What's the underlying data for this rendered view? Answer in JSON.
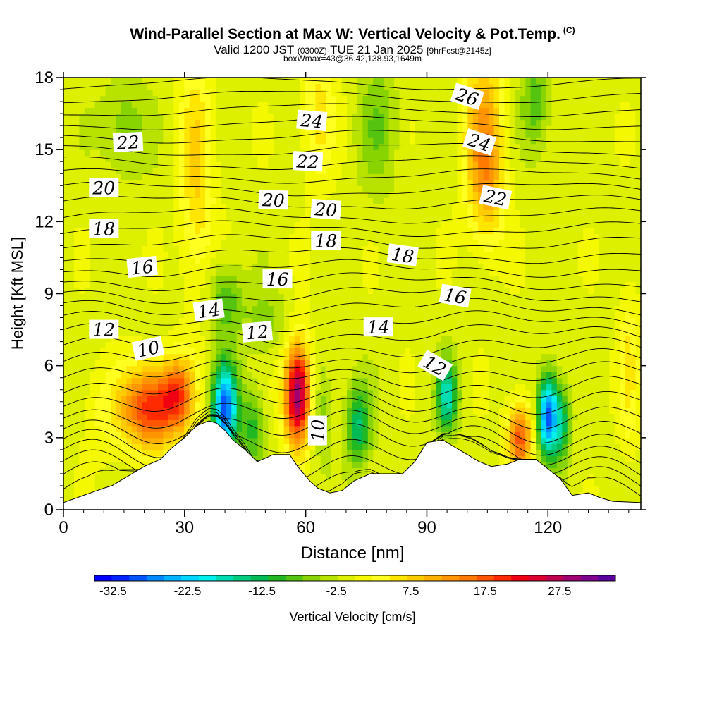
{
  "titles": {
    "main": "Wind-Parallel Section at Max W: Vertical Velocity & Pot.Temp.",
    "copyright": "(C)",
    "valid_prefix": "Valid 1200 JST",
    "valid_utc": "(0300Z)",
    "valid_date": "TUE 21 Jan 2025",
    "forecast": "[9hrFcst@2145z]",
    "boxinfo": "boxWmax=43@36.42,138.93,1649m"
  },
  "chart_data": {
    "type": "heatmap",
    "xlabel": "Distance [nm]",
    "ylabel": "Height [Kft MSL]",
    "xlim": [
      0,
      143
    ],
    "ylim": [
      0,
      18
    ],
    "x_ticks": [
      0,
      30,
      60,
      90,
      120
    ],
    "y_ticks": [
      0,
      3,
      6,
      9,
      12,
      15,
      18
    ],
    "colorbar": {
      "label": "Vertical Velocity [cm/s]",
      "tick_labels": [
        "-32.5",
        "-22.5",
        "-12.5",
        "-2.5",
        "7.5",
        "17.5",
        "27.5"
      ],
      "tick_values": [
        -32.5,
        -22.5,
        -12.5,
        -2.5,
        7.5,
        17.5,
        27.5
      ],
      "min": -35,
      "max": 35,
      "step": 2.5,
      "colors": [
        "#0000ff",
        "#0022ff",
        "#0055ff",
        "#0088ff",
        "#00b4ff",
        "#00d6ff",
        "#00f0ee",
        "#00ddb0",
        "#00cc80",
        "#00bb55",
        "#22b822",
        "#55c411",
        "#88d400",
        "#b8e300",
        "#dcf000",
        "#f4f800",
        "#ffff20",
        "#ffe600",
        "#ffcc00",
        "#ffb000",
        "#ff9500",
        "#ff7a00",
        "#ff5500",
        "#ff2a00",
        "#f00010",
        "#dc0030",
        "#c00050",
        "#a00070",
        "#800090",
        "#5a00a0"
      ]
    },
    "terrain": [
      [
        0,
        0.3
      ],
      [
        5,
        0.6
      ],
      [
        10,
        0.9
      ],
      [
        12,
        1.0
      ],
      [
        14,
        1.2
      ],
      [
        16,
        1.4
      ],
      [
        18,
        1.6
      ],
      [
        20,
        1.8
      ],
      [
        24,
        2.1
      ],
      [
        27,
        2.6
      ],
      [
        30,
        3.0
      ],
      [
        33,
        3.5
      ],
      [
        36,
        3.7
      ],
      [
        38,
        3.6
      ],
      [
        40,
        3.3
      ],
      [
        42,
        2.9
      ],
      [
        45,
        2.5
      ],
      [
        48,
        2.0
      ],
      [
        52,
        2.3
      ],
      [
        56,
        2.3
      ],
      [
        58,
        1.8
      ],
      [
        61,
        1.2
      ],
      [
        63,
        0.9
      ],
      [
        66,
        0.7
      ],
      [
        69,
        0.8
      ],
      [
        72,
        1.2
      ],
      [
        76,
        1.5
      ],
      [
        80,
        1.5
      ],
      [
        84,
        1.5
      ],
      [
        87,
        2.0
      ],
      [
        90,
        2.8
      ],
      [
        94,
        2.9
      ],
      [
        97,
        2.6
      ],
      [
        100,
        2.3
      ],
      [
        103,
        2.0
      ],
      [
        106,
        1.8
      ],
      [
        110,
        1.9
      ],
      [
        113,
        2.1
      ],
      [
        117,
        2.1
      ],
      [
        120,
        1.7
      ],
      [
        123,
        1.3
      ],
      [
        126,
        0.6
      ],
      [
        130,
        0.7
      ],
      [
        133,
        0.5
      ],
      [
        136,
        0.35
      ],
      [
        143,
        0.3
      ]
    ],
    "w_anomalies": [
      {
        "x": 22,
        "z": 4.3,
        "amp": 24,
        "sx": 5.5,
        "sz": 1.2
      },
      {
        "x": 28.5,
        "z": 5.0,
        "amp": 12,
        "sx": 2.5,
        "sz": 1.0
      },
      {
        "x": 40,
        "z": 4.2,
        "amp": -30,
        "sx": 2.2,
        "sz": 1.3
      },
      {
        "x": 58,
        "z": 4.8,
        "amp": 34,
        "sx": 2.3,
        "sz": 1.5
      },
      {
        "x": 47,
        "z": 3.4,
        "amp": -10,
        "sx": 2.0,
        "sz": 1.2
      },
      {
        "x": 73,
        "z": 3.5,
        "amp": -14,
        "sx": 2.2,
        "sz": 1.2
      },
      {
        "x": 95,
        "z": 4.8,
        "amp": -18,
        "sx": 1.8,
        "sz": 1.0
      },
      {
        "x": 113,
        "z": 3.0,
        "amp": 20,
        "sx": 2.2,
        "sz": 1.1
      },
      {
        "x": 120,
        "z": 3.9,
        "amp": -30,
        "sx": 1.8,
        "sz": 1.2
      },
      {
        "x": 123.5,
        "z": 3.6,
        "amp": -12,
        "sx": 1.5,
        "sz": 1.1
      },
      {
        "x": 64,
        "z": 4.2,
        "amp": -6,
        "sx": 2.0,
        "sz": 1.5
      },
      {
        "x": 33,
        "z": 14,
        "amp": 9,
        "sx": 3.0,
        "sz": 3.5
      },
      {
        "x": 40,
        "z": 8.8,
        "amp": -9,
        "sx": 3.0,
        "sz": 1.1
      },
      {
        "x": 104,
        "z": 16,
        "amp": 12,
        "sx": 3.5,
        "sz": 2.5
      },
      {
        "x": 105,
        "z": 13.2,
        "amp": 8,
        "sx": 3.0,
        "sz": 1.8
      },
      {
        "x": 117,
        "z": 17,
        "amp": -8,
        "sx": 2.5,
        "sz": 1.5
      },
      {
        "x": 15,
        "z": 16,
        "amp": -6,
        "sx": 4.0,
        "sz": 1.5
      },
      {
        "x": 78,
        "z": 16,
        "amp": -6,
        "sx": 3.5,
        "sz": 2.0
      },
      {
        "x": 63,
        "z": 16.5,
        "amp": 7,
        "sx": 3.0,
        "sz": 2.0
      },
      {
        "x": 50,
        "z": 7.8,
        "amp": -5,
        "sx": 4.0,
        "sz": 1.0
      },
      {
        "x": 140,
        "z": 6,
        "amp": 6,
        "sx": 2.0,
        "sz": 2.5
      },
      {
        "x": 8,
        "z": 4,
        "amp": 3,
        "sx": 3.0,
        "sz": 1.5
      }
    ],
    "contour_labels": [
      {
        "text": "22",
        "x": 16,
        "z": 15.3,
        "angle": -3
      },
      {
        "text": "20",
        "x": 10,
        "z": 13.4,
        "angle": 0
      },
      {
        "text": "18",
        "x": 10,
        "z": 11.7,
        "angle": 0
      },
      {
        "text": "16",
        "x": 19.5,
        "z": 10.1,
        "angle": -6
      },
      {
        "text": "14",
        "x": 36,
        "z": 8.3,
        "angle": -8
      },
      {
        "text": "12",
        "x": 10,
        "z": 7.5,
        "angle": 0
      },
      {
        "text": "10",
        "x": 21,
        "z": 6.7,
        "angle": -12
      },
      {
        "text": "24",
        "x": 61.5,
        "z": 16.2,
        "angle": 5
      },
      {
        "text": "22",
        "x": 60.5,
        "z": 14.5,
        "angle": 3
      },
      {
        "text": "20",
        "x": 52,
        "z": 12.9,
        "angle": 2
      },
      {
        "text": "20",
        "x": 65,
        "z": 12.5,
        "angle": 4
      },
      {
        "text": "18",
        "x": 65,
        "z": 11.2,
        "angle": 0
      },
      {
        "text": "16",
        "x": 53,
        "z": 9.6,
        "angle": 0
      },
      {
        "text": "12",
        "x": 48,
        "z": 7.4,
        "angle": -5
      },
      {
        "text": "14",
        "x": 78,
        "z": 7.6,
        "angle": 0
      },
      {
        "text": "18",
        "x": 84,
        "z": 10.6,
        "angle": 8
      },
      {
        "text": "16",
        "x": 97,
        "z": 8.9,
        "angle": 10
      },
      {
        "text": "12",
        "x": 92,
        "z": 6.0,
        "angle": 30
      },
      {
        "text": "10",
        "x": 63,
        "z": 3.3,
        "angle": -90
      },
      {
        "text": "26",
        "x": 100,
        "z": 17.2,
        "angle": 18
      },
      {
        "text": "24",
        "x": 103,
        "z": 15.3,
        "angle": 18
      },
      {
        "text": "22",
        "x": 107,
        "z": 13.0,
        "angle": 12
      }
    ]
  }
}
